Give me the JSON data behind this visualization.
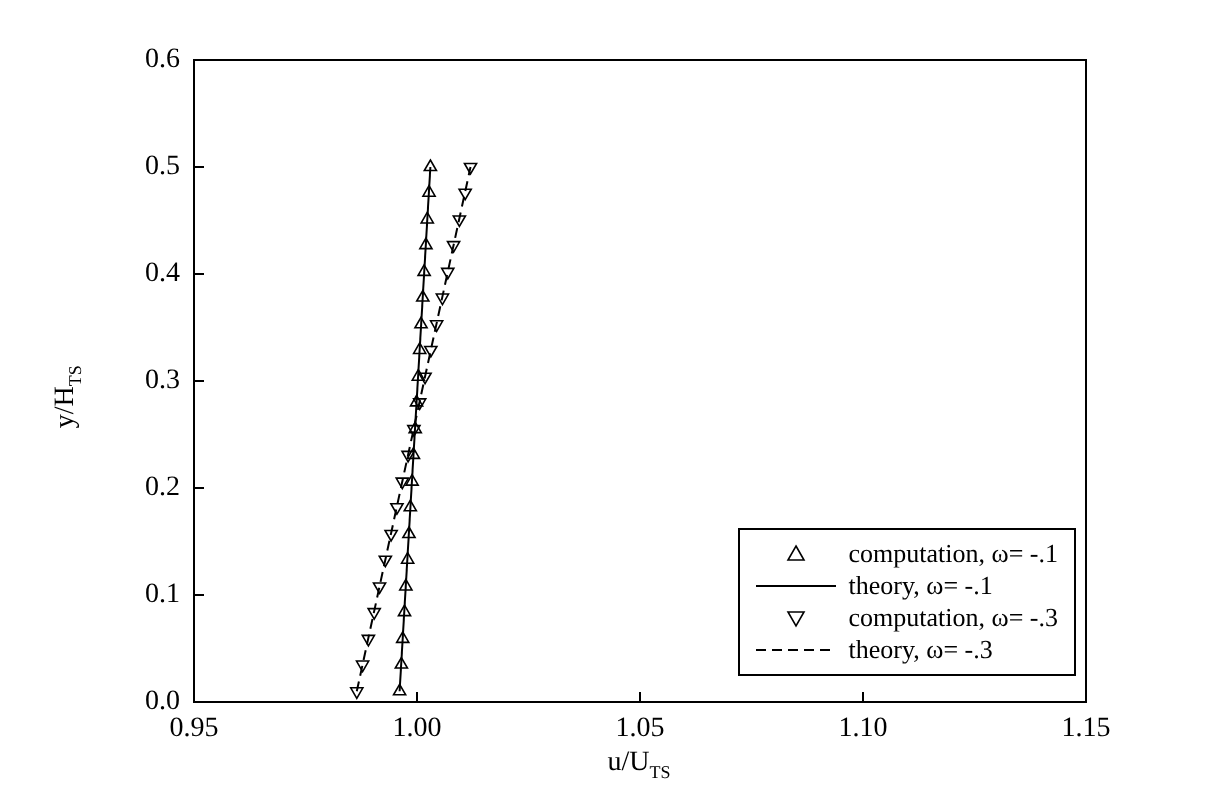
{
  "chart_data": {
    "type": "scatter",
    "xlabel": "u/U$_{TS}$",
    "ylabel": "y/H$_{TS}$",
    "xlim": [
      0.95,
      1.15
    ],
    "xticks": [
      0.95,
      {
        "value": 1,
        "label": "1.00"
      },
      1.05,
      {
        "value": 1.1,
        "label": "1.10"
      },
      1.15
    ],
    "ylim": [
      0,
      0.6
    ],
    "yticks": [
      {
        "value": 0,
        "label": "0.0"
      },
      0.1,
      0.2,
      0.3,
      0.4,
      0.5,
      0.6
    ],
    "grid": false,
    "legend": "bottom right",
    "series": [
      {
        "name": "computation, ω= -.1",
        "marker": "triangle",
        "color": "#000000",
        "x": [
          0.9961,
          0.9965,
          0.9968,
          0.9972,
          0.9975,
          0.9979,
          0.9982,
          0.9985,
          0.9989,
          0.9992,
          0.9996,
          0.9999,
          1.0003,
          1.0006,
          1.0009,
          1.0013,
          1.0016,
          1.002,
          1.0023,
          1.0027,
          1.003
        ],
        "values": [
          0.01,
          0.035,
          0.059,
          0.084,
          0.108,
          0.133,
          0.157,
          0.182,
          0.206,
          0.231,
          0.255,
          0.28,
          0.304,
          0.329,
          0.353,
          0.378,
          0.402,
          0.427,
          0.451,
          0.476,
          0.5
        ]
      },
      {
        "name": "theory, ω= -.1",
        "type": "line",
        "line_style": "solid",
        "marker": "none",
        "color": "#000000",
        "x": [
          0.9961,
          1.003
        ],
        "values": [
          0.01,
          0.5
        ]
      },
      {
        "name": "computation, ω= -.3",
        "marker": "triangle-down",
        "color": "#000000",
        "x": [
          0.9865,
          0.9878,
          0.9891,
          0.9904,
          0.9916,
          0.9929,
          0.9942,
          0.9955,
          0.9967,
          0.998,
          0.9993,
          1.0006,
          1.0018,
          1.0031,
          1.0044,
          1.0057,
          1.0069,
          1.0082,
          1.0095,
          1.0108,
          1.012
        ],
        "values": [
          0.01,
          0.035,
          0.059,
          0.084,
          0.108,
          0.133,
          0.157,
          0.182,
          0.206,
          0.231,
          0.255,
          0.28,
          0.304,
          0.329,
          0.353,
          0.378,
          0.402,
          0.427,
          0.451,
          0.476,
          0.5
        ]
      },
      {
        "name": "theory, ω= -.3",
        "type": "line",
        "line_style": "dashed",
        "marker": "none",
        "color": "#000000",
        "x": [
          0.9865,
          1.012
        ],
        "values": [
          0.01,
          0.5
        ]
      }
    ]
  }
}
